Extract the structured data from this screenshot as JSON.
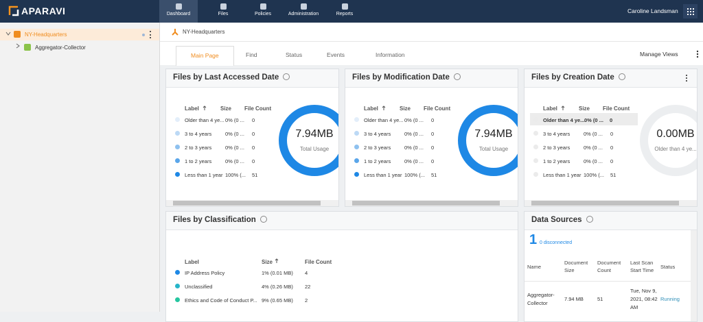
{
  "header": {
    "logo": "APARAVI",
    "nav": [
      "Dashboard",
      "Files",
      "Policies",
      "Administration",
      "Reports"
    ],
    "active": 0,
    "user": "Caroline Landsman"
  },
  "sidebar": {
    "tree": [
      {
        "label": "NY-Headquarters",
        "selected": true
      },
      {
        "label": "Aggregator-Collector",
        "selected": false
      }
    ]
  },
  "breadcrumb": "NY-Headquarters",
  "tabs": {
    "items": [
      "Main Page",
      "Find",
      "Status",
      "Events",
      "Information"
    ],
    "active": 0,
    "manage_views": "Manage Views"
  },
  "widgets": [
    {
      "title": "Files by Last Accessed Date",
      "columns": [
        "Label",
        "Size",
        "File Count"
      ],
      "sorted_column": 0,
      "rows": [
        {
          "label": "Older than 4 ye...",
          "size": "0% (0 ...",
          "count": "0",
          "color": "#e3eefa"
        },
        {
          "label": "3 to 4 years",
          "size": "0% (0 ...",
          "count": "0",
          "color": "#bcd9f5"
        },
        {
          "label": "2 to 3 years",
          "size": "0% (0 ...",
          "count": "0",
          "color": "#8ec1ef"
        },
        {
          "label": "1 to 2 years",
          "size": "0% (0 ...",
          "count": "0",
          "color": "#5aa6ea"
        },
        {
          "label": "Less than 1 year",
          "size": "100% (...",
          "count": "51",
          "color": "#1e88e5"
        }
      ],
      "donut": {
        "value": "7.94MB",
        "caption": "Total Usage",
        "color": "#1e88e5"
      }
    },
    {
      "title": "Files by Modification Date",
      "columns": [
        "Label",
        "Size",
        "File Count"
      ],
      "sorted_column": 0,
      "rows": [
        {
          "label": "Older than 4 ye...",
          "size": "0% (0 ...",
          "count": "0",
          "color": "#e3eefa"
        },
        {
          "label": "3 to 4 years",
          "size": "0% (0 ...",
          "count": "0",
          "color": "#bcd9f5"
        },
        {
          "label": "2 to 3 years",
          "size": "0% (0 ...",
          "count": "0",
          "color": "#8ec1ef"
        },
        {
          "label": "1 to 2 years",
          "size": "0% (0 ...",
          "count": "0",
          "color": "#5aa6ea"
        },
        {
          "label": "Less than 1 year",
          "size": "100% (...",
          "count": "51",
          "color": "#1e88e5"
        }
      ],
      "donut": {
        "value": "7.94MB",
        "caption": "Total Usage",
        "color": "#1e88e5"
      }
    },
    {
      "title": "Files by Creation Date",
      "columns": [
        "Label",
        "Size",
        "File Count"
      ],
      "sorted_column": 0,
      "highlighted": 0,
      "rows": [
        {
          "label": "Older than 4 ye...",
          "size": "0% (0 ...",
          "count": "0",
          "color": "#ebebeb"
        },
        {
          "label": "3 to 4 years",
          "size": "0% (0 ...",
          "count": "0",
          "color": "#ebebeb"
        },
        {
          "label": "2 to 3 years",
          "size": "0% (0 ...",
          "count": "0",
          "color": "#ebebeb"
        },
        {
          "label": "1 to 2 years",
          "size": "0% (0 ...",
          "count": "0",
          "color": "#ebebeb"
        },
        {
          "label": "Less than 1 year",
          "size": "100% (...",
          "count": "51",
          "color": "#ebebeb"
        }
      ],
      "donut": {
        "value": "0.00MB",
        "caption": "Older than 4 ye...",
        "color": "#eceef0"
      }
    }
  ],
  "classification": {
    "title": "Files by Classification",
    "columns": [
      "Label",
      "Size",
      "File Count"
    ],
    "sorted_column": 1,
    "rows": [
      {
        "label": "IP Address Policy",
        "size": "1% (0.01 MB)",
        "count": "4",
        "color": "#1e88e5"
      },
      {
        "label": "Unclassified",
        "size": "4% (0.26 MB)",
        "count": "22",
        "color": "#26b5c9"
      },
      {
        "label": "Ethics and Code of Conduct P...",
        "size": "9% (0.65 MB)",
        "count": "2",
        "color": "#26c6a0"
      }
    ]
  },
  "data_sources": {
    "title": "Data Sources",
    "count": "1",
    "disconnected": "0 disconnected",
    "columns": [
      "Name",
      "Document Size",
      "Document Count",
      "Last Scan Start Time",
      "Status"
    ],
    "rows": [
      [
        "Aggregator-Collector",
        "7.94 MB",
        "51",
        "Tue, Nov 9, 2021, 08:42 AM",
        "Running"
      ]
    ]
  }
}
